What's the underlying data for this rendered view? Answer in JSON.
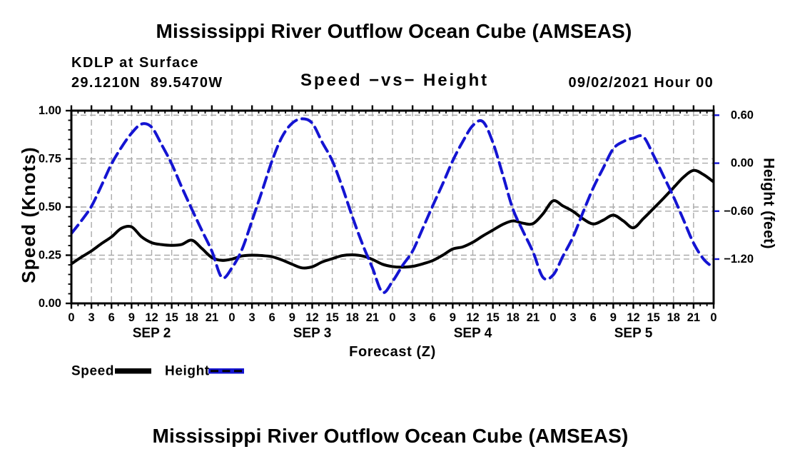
{
  "figure": {
    "title_top": "Mississippi River Outflow Ocean Cube (AMSEAS)",
    "title_bottom": "Mississippi River Outflow Ocean Cube (AMSEAS)",
    "station_label": "KDLP at Surface",
    "coordinates_label": "29.1210N  89.5470W",
    "panel_title": "Speed −vs− Height",
    "datetime_label": "09/02/2021 Hour 00"
  },
  "chart_data": {
    "type": "line",
    "title": "Speed −vs− Height",
    "subtitle_station": "KDLP at Surface",
    "subtitle_coordinates": "29.1210N  89.5470W",
    "subtitle_datetime": "09/02/2021 Hour 00",
    "xlabel": "Forecast (Z)",
    "ylabel_left": "Speed (Knots)",
    "ylabel_right": "Height (feet)",
    "grid": true,
    "legend_position": "below-left",
    "x_unit": "hours (Z)",
    "x_range_hours": [
      0,
      96
    ],
    "x_major_tick_interval_hours": 3,
    "x_minor_tick_interval_hours": 1,
    "x_tick_labels": [
      "0",
      "3",
      "6",
      "9",
      "12",
      "15",
      "18",
      "21",
      "0",
      "3",
      "6",
      "9",
      "12",
      "15",
      "18",
      "21",
      "0",
      "3",
      "6",
      "9",
      "12",
      "15",
      "18",
      "21",
      "0",
      "3",
      "6",
      "9",
      "12",
      "15",
      "18",
      "21",
      "0"
    ],
    "day_labels": [
      "SEP 2",
      "SEP 3",
      "SEP 4",
      "SEP 5"
    ],
    "y_left_axis": {
      "label": "Speed (Knots)",
      "range": [
        0.0,
        1.0
      ],
      "tick_values": [
        0.0,
        0.25,
        0.5,
        0.75,
        1.0
      ],
      "tick_labels": [
        "0.00",
        "0.25",
        "0.50",
        "0.75",
        "1.00"
      ],
      "minor_tick_interval": 0.05
    },
    "y_right_axis": {
      "label": "Height (feet)",
      "range": [
        -1.754,
        0.657
      ],
      "tick_values": [
        0.6,
        0.0,
        -0.6,
        -1.2
      ],
      "tick_labels": [
        "0.60",
        "0.00",
        "−0.60",
        "−1.20"
      ]
    },
    "x_hours": [
      0,
      1.5,
      3,
      4.5,
      6,
      7.5,
      9,
      10.5,
      12,
      13.5,
      15,
      16.5,
      18,
      19.5,
      21,
      22.5,
      24,
      25.5,
      27,
      28.5,
      30,
      31.5,
      33,
      34.5,
      36,
      37.5,
      39,
      40.5,
      42,
      43.5,
      45,
      46.5,
      48,
      49.5,
      51,
      52.5,
      54,
      55.5,
      57,
      58.5,
      60,
      61.5,
      63,
      64.5,
      66,
      67.5,
      69,
      70.5,
      72,
      73.5,
      75,
      76.5,
      78,
      79.5,
      81,
      82.5,
      84,
      85.5,
      87,
      88.5,
      90,
      91.5,
      93,
      94.5,
      96
    ],
    "series": [
      {
        "name": "Speed",
        "axis": "left",
        "units": "knots",
        "color": "#000000",
        "line_style": "solid",
        "values": [
          0.205,
          0.24,
          0.272,
          0.31,
          0.345,
          0.39,
          0.397,
          0.345,
          0.315,
          0.305,
          0.301,
          0.306,
          0.328,
          0.285,
          0.238,
          0.223,
          0.23,
          0.246,
          0.25,
          0.248,
          0.242,
          0.225,
          0.203,
          0.184,
          0.19,
          0.215,
          0.232,
          0.248,
          0.252,
          0.246,
          0.228,
          0.203,
          0.191,
          0.188,
          0.192,
          0.205,
          0.222,
          0.25,
          0.282,
          0.293,
          0.317,
          0.35,
          0.38,
          0.41,
          0.428,
          0.416,
          0.414,
          0.465,
          0.532,
          0.505,
          0.477,
          0.438,
          0.412,
          0.432,
          0.458,
          0.428,
          0.392,
          0.44,
          0.492,
          0.545,
          0.6,
          0.655,
          0.69,
          0.668,
          0.63
        ]
      },
      {
        "name": "Height",
        "axis": "right",
        "units": "feet",
        "color": "#1414d2",
        "line_style": "dashed",
        "values": [
          -0.88,
          -0.72,
          -0.54,
          -0.28,
          -0.01,
          0.2,
          0.375,
          0.49,
          0.45,
          0.23,
          -0.01,
          -0.3,
          -0.575,
          -0.84,
          -1.1,
          -1.43,
          -1.31,
          -1.08,
          -0.72,
          -0.35,
          0.03,
          0.33,
          0.5,
          0.555,
          0.5,
          0.26,
          0.03,
          -0.3,
          -0.67,
          -1.01,
          -1.31,
          -1.615,
          -1.48,
          -1.28,
          -1.1,
          -0.82,
          -0.535,
          -0.26,
          0.03,
          0.27,
          0.47,
          0.52,
          0.26,
          -0.15,
          -0.575,
          -0.85,
          -1.11,
          -1.43,
          -1.4,
          -1.16,
          -0.92,
          -0.61,
          -0.31,
          -0.06,
          0.18,
          0.27,
          0.315,
          0.33,
          0.1,
          -0.16,
          -0.42,
          -0.71,
          -1.0,
          -1.2,
          -1.31
        ]
      }
    ],
    "legend_entries": [
      "Speed",
      "Height"
    ],
    "colors": {
      "speed_line": "#000000",
      "height_line": "#1414d2",
      "grid_line": "#aaaaaa",
      "axis_frame": "#000000",
      "background": "#ffffff"
    }
  }
}
